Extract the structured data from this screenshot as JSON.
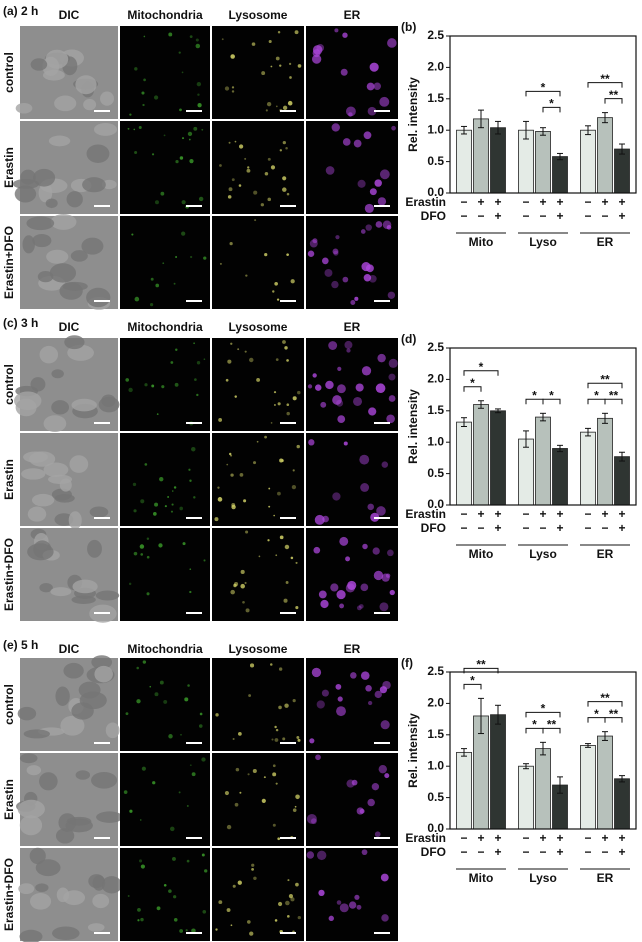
{
  "image_panels": [
    {
      "label": "(a) 2 h",
      "columns": [
        "DIC",
        "Mitochondria",
        "Lysosome",
        "ER"
      ],
      "rows": [
        "control",
        "Erastin",
        "Erastin+DFO"
      ]
    },
    {
      "label": "(c) 3 h",
      "columns": [
        "DIC",
        "Mitochondria",
        "Lysosome",
        "ER"
      ],
      "rows": [
        "control",
        "Erastin",
        "Erastin+DFO"
      ]
    },
    {
      "label": "(e) 5 h",
      "columns": [
        "DIC",
        "Mitochondria",
        "Lysosome",
        "ER"
      ],
      "rows": [
        "control",
        "Erastin",
        "Erastin+DFO"
      ]
    }
  ],
  "chart_data": [
    {
      "type": "bar",
      "label": "(b)",
      "ylabel": "Rel. intensity",
      "categories": [
        "Mito",
        "Lyso",
        "ER"
      ],
      "ylim": [
        0,
        2.5
      ],
      "yticks": [
        {
          "value": 0,
          "label": "0.0"
        },
        0.5,
        {
          "value": 1,
          "label": "1.0"
        },
        1.5,
        {
          "value": 2,
          "label": "2.0"
        },
        2.5
      ],
      "series": [
        {
          "color": "#e4ebe6",
          "values": [
            1.0,
            1.0,
            1.0
          ],
          "errors": [
            0.06,
            0.14,
            0.07
          ]
        },
        {
          "color": "#b7c1bb",
          "values": [
            1.18,
            0.98,
            1.2
          ],
          "errors": [
            0.14,
            0.06,
            0.08
          ]
        },
        {
          "color": "#2f3532",
          "values": [
            1.04,
            0.58,
            0.7
          ],
          "errors": [
            0.1,
            0.05,
            0.08
          ]
        }
      ],
      "conditions": [
        {
          "name": "Erastin",
          "signs": [
            "−",
            "+",
            "+"
          ]
        },
        {
          "name": "DFO",
          "signs": [
            "−",
            "−",
            "+"
          ]
        }
      ],
      "significance": [
        {
          "label": "*",
          "category": 1,
          "bars": [
            1,
            2
          ]
        },
        {
          "label": "*",
          "category": 1,
          "bars": [
            0,
            2
          ]
        },
        {
          "label": "**",
          "category": 2,
          "bars": [
            1,
            2
          ]
        },
        {
          "label": "**",
          "category": 2,
          "bars": [
            0,
            2
          ]
        }
      ]
    },
    {
      "type": "bar",
      "label": "(d)",
      "ylabel": "Rel. intensity",
      "categories": [
        "Mito",
        "Lyso",
        "ER"
      ],
      "ylim": [
        0,
        2.5
      ],
      "yticks": [
        {
          "value": 0,
          "label": "0.0"
        },
        0.5,
        {
          "value": 1,
          "label": "1.0"
        },
        1.5,
        {
          "value": 2,
          "label": "2.0"
        },
        2.5
      ],
      "series": [
        {
          "color": "#e4ebe6",
          "values": [
            1.32,
            1.05,
            1.16
          ],
          "errors": [
            0.07,
            0.13,
            0.06
          ]
        },
        {
          "color": "#b7c1bb",
          "values": [
            1.6,
            1.4,
            1.38
          ],
          "errors": [
            0.06,
            0.06,
            0.08
          ]
        },
        {
          "color": "#2f3532",
          "values": [
            1.5,
            0.9,
            0.77
          ],
          "errors": [
            0.03,
            0.05,
            0.07
          ]
        }
      ],
      "conditions": [
        {
          "name": "Erastin",
          "signs": [
            "−",
            "+",
            "+"
          ]
        },
        {
          "name": "DFO",
          "signs": [
            "−",
            "−",
            "+"
          ]
        }
      ],
      "significance": [
        {
          "label": "*",
          "category": 0,
          "bars": [
            0,
            1
          ]
        },
        {
          "label": "*",
          "category": 0,
          "bars": [
            0,
            2
          ]
        },
        {
          "label": "*",
          "category": 1,
          "bars": [
            0,
            1
          ]
        },
        {
          "label": "*",
          "category": 1,
          "bars": [
            1,
            2
          ]
        },
        {
          "label": "*",
          "category": 2,
          "bars": [
            0,
            1
          ]
        },
        {
          "label": "**",
          "category": 2,
          "bars": [
            1,
            2
          ]
        },
        {
          "label": "**",
          "category": 2,
          "bars": [
            0,
            2
          ]
        }
      ]
    },
    {
      "type": "bar",
      "label": "(f)",
      "ylabel": "Rel. intensity",
      "categories": [
        "Mito",
        "Lyso",
        "ER"
      ],
      "ylim": [
        0,
        2.5
      ],
      "yticks": [
        {
          "value": 0,
          "label": "0.0"
        },
        0.5,
        {
          "value": 1,
          "label": "1.0"
        },
        1.5,
        {
          "value": 2,
          "label": "2.0"
        },
        2.5
      ],
      "series": [
        {
          "color": "#e4ebe6",
          "values": [
            1.22,
            1.0,
            1.33
          ],
          "errors": [
            0.06,
            0.04,
            0.03
          ]
        },
        {
          "color": "#b7c1bb",
          "values": [
            1.8,
            1.28,
            1.48
          ],
          "errors": [
            0.28,
            0.1,
            0.07
          ]
        },
        {
          "color": "#2f3532",
          "values": [
            1.82,
            0.7,
            0.8
          ],
          "errors": [
            0.15,
            0.13,
            0.05
          ]
        }
      ],
      "conditions": [
        {
          "name": "Erastin",
          "signs": [
            "−",
            "+",
            "+"
          ]
        },
        {
          "name": "DFO",
          "signs": [
            "−",
            "−",
            "+"
          ]
        }
      ],
      "significance": [
        {
          "label": "*",
          "category": 0,
          "bars": [
            0,
            1
          ]
        },
        {
          "label": "**",
          "category": 0,
          "bars": [
            0,
            2
          ]
        },
        {
          "label": "*",
          "category": 1,
          "bars": [
            0,
            1
          ]
        },
        {
          "label": "**",
          "category": 1,
          "bars": [
            1,
            2
          ]
        },
        {
          "label": "*",
          "category": 1,
          "bars": [
            0,
            2
          ]
        },
        {
          "label": "*",
          "category": 2,
          "bars": [
            0,
            1
          ]
        },
        {
          "label": "**",
          "category": 2,
          "bars": [
            1,
            2
          ]
        },
        {
          "label": "**",
          "category": 2,
          "bars": [
            0,
            2
          ]
        }
      ]
    }
  ]
}
